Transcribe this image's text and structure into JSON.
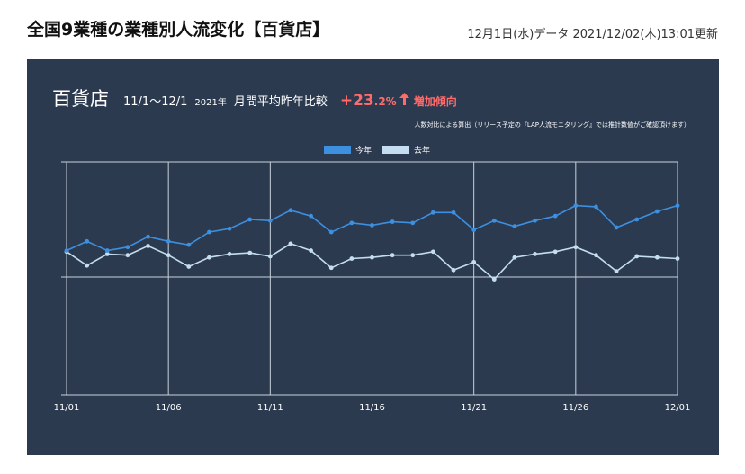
{
  "header": {
    "title": "全国9業種の業種別人流変化【百貨店】",
    "updated": "12月1日(水)データ 2021/12/02(木)13:01更新"
  },
  "heading": {
    "store": "百貨店",
    "range": "11/1〜12/1",
    "year": "2021年",
    "metric": "月間平均昨年比較",
    "change_sign_num": "+23",
    "change_dec": ".2%",
    "trend": "増加傾向",
    "arrow_icon": "up-arrow-icon"
  },
  "note": "人数対比による算出（リリース予定の『LAP人流モニタリング』では推計数値がご確認頂けます）",
  "colors": {
    "panel": "#2b3a4f",
    "this_year": "#3d8fe0",
    "last_year": "#c5ddf0",
    "accent": "#ff6b6b",
    "grid": "#c8d2dc"
  },
  "chart_data": {
    "type": "line",
    "x_tick_labels": [
      "11/01",
      "11/06",
      "11/11",
      "11/16",
      "11/21",
      "11/26",
      "12/01"
    ],
    "x": [
      "11/01",
      "11/02",
      "11/03",
      "11/04",
      "11/05",
      "11/06",
      "11/07",
      "11/08",
      "11/09",
      "11/10",
      "11/11",
      "11/12",
      "11/13",
      "11/14",
      "11/15",
      "11/16",
      "11/17",
      "11/18",
      "11/19",
      "11/20",
      "11/21",
      "11/22",
      "11/23",
      "11/24",
      "11/25",
      "11/26",
      "11/27",
      "11/28",
      "11/29",
      "11/30",
      "12/01"
    ],
    "grid": true,
    "legend_position": "top-center",
    "series": [
      {
        "name": "今年",
        "values": [
          0.23,
          0.31,
          0.23,
          0.26,
          0.35,
          0.31,
          0.28,
          0.39,
          0.42,
          0.5,
          0.49,
          0.58,
          0.53,
          0.39,
          0.47,
          0.45,
          0.48,
          0.47,
          0.56,
          0.56,
          0.41,
          0.49,
          0.44,
          0.49,
          0.53,
          0.62,
          0.61,
          0.43,
          0.5,
          0.57,
          0.62
        ]
      },
      {
        "name": "去年",
        "values": [
          0.22,
          0.1,
          0.2,
          0.19,
          0.27,
          0.19,
          0.09,
          0.17,
          0.2,
          0.21,
          0.18,
          0.29,
          0.23,
          0.08,
          0.16,
          0.17,
          0.19,
          0.19,
          0.22,
          0.06,
          0.13,
          -0.02,
          0.17,
          0.2,
          0.22,
          0.26,
          0.19,
          0.05,
          0.18,
          0.17,
          0.16
        ]
      }
    ]
  }
}
